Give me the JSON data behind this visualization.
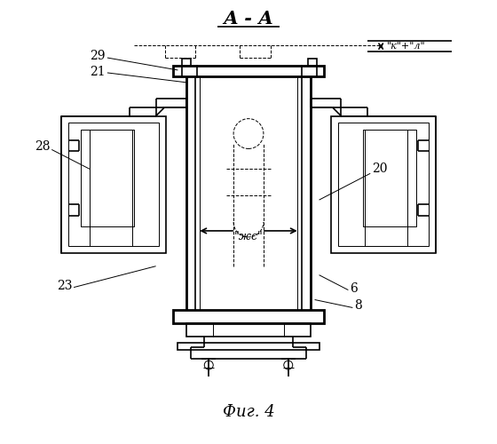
{
  "bg_color": "#ffffff",
  "line_color": "#000000",
  "title": "А - А",
  "fig_label": "Фиг. 4",
  "lw_thin": 0.7,
  "lw_main": 1.2,
  "lw_thick": 2.0
}
